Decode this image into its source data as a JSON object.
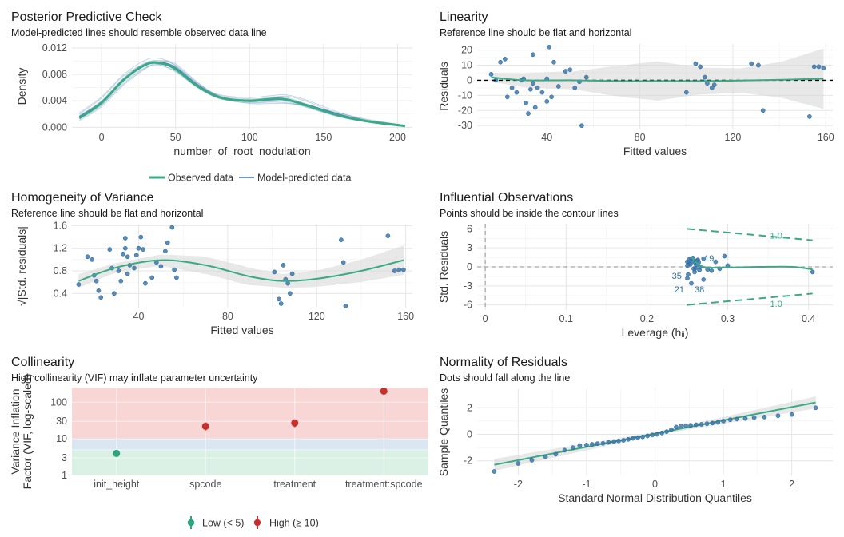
{
  "colors": {
    "observed": "#3aaa85",
    "predicted": "#3a78b0",
    "point": "#3a78b0",
    "ribbon": "#d9d9d9",
    "high_band": "#f7d2d2",
    "mod_band": "#d6e4f2",
    "low_band": "#d8efe3",
    "low": "#2ea57a",
    "high": "#c9302c"
  },
  "chart_data": [
    {
      "id": "ppc",
      "type": "line",
      "title": "Posterior Predictive Check",
      "subtitle": "Model-predicted lines should resemble observed data line",
      "xlabel": "number_of_root_nodulation",
      "ylabel": "Density",
      "xlim": [
        -20,
        210
      ],
      "ylim": [
        -0.0002,
        0.0126
      ],
      "xticks": [
        0,
        50,
        100,
        150,
        200
      ],
      "yticks": [
        0,
        0.004,
        0.008,
        0.012
      ],
      "ytick_labels": [
        "0.000",
        "0.004",
        "0.008",
        "0.012"
      ],
      "legend": [
        "Observed data",
        "Model-predicted data"
      ],
      "legend_position": "bottom",
      "observed": {
        "x": [
          -15,
          0,
          15,
          30,
          40,
          50,
          65,
          80,
          100,
          115,
          125,
          140,
          160,
          180,
          205
        ],
        "y": [
          0.0014,
          0.0037,
          0.0072,
          0.0095,
          0.0097,
          0.0088,
          0.0062,
          0.0045,
          0.004,
          0.0043,
          0.0042,
          0.0032,
          0.0018,
          0.0009,
          0.0002
        ]
      },
      "predicted_series": [
        {
          "x": [
            -15,
            0,
            15,
            30,
            40,
            50,
            65,
            80,
            100,
            115,
            125,
            140,
            160,
            180,
            205
          ],
          "y": [
            0.0018,
            0.004,
            0.0075,
            0.0098,
            0.0099,
            0.009,
            0.0063,
            0.0044,
            0.0039,
            0.004,
            0.004,
            0.0033,
            0.002,
            0.001,
            0.0002
          ]
        },
        {
          "x": [
            -15,
            0,
            15,
            30,
            40,
            50,
            65,
            80,
            100,
            115,
            125,
            140,
            160,
            180,
            205
          ],
          "y": [
            0.0012,
            0.0033,
            0.0068,
            0.0091,
            0.0095,
            0.0087,
            0.0061,
            0.0046,
            0.0042,
            0.0046,
            0.0045,
            0.0034,
            0.0019,
            0.0009,
            0.0002
          ]
        },
        {
          "x": [
            -15,
            0,
            15,
            30,
            40,
            50,
            65,
            80,
            100,
            115,
            125,
            140,
            160,
            180,
            205
          ],
          "y": [
            0.002,
            0.0044,
            0.0078,
            0.0096,
            0.0094,
            0.0084,
            0.006,
            0.0043,
            0.0037,
            0.0038,
            0.0037,
            0.0031,
            0.0021,
            0.0011,
            0.0003
          ]
        },
        {
          "x": [
            -15,
            0,
            15,
            30,
            40,
            50,
            65,
            80,
            100,
            115,
            125,
            140,
            160,
            180,
            205
          ],
          "y": [
            0.001,
            0.0031,
            0.0064,
            0.0089,
            0.01,
            0.0096,
            0.0068,
            0.0047,
            0.004,
            0.0044,
            0.0047,
            0.0038,
            0.002,
            0.0008,
            0.0001
          ]
        },
        {
          "x": [
            -15,
            0,
            15,
            30,
            40,
            50,
            65,
            80,
            100,
            115,
            125,
            140,
            160,
            180,
            205
          ],
          "y": [
            0.0016,
            0.0038,
            0.0071,
            0.0094,
            0.0098,
            0.0092,
            0.0066,
            0.0048,
            0.0043,
            0.0043,
            0.0041,
            0.003,
            0.0017,
            0.0009,
            0.0002
          ]
        },
        {
          "x": [
            -15,
            0,
            15,
            30,
            40,
            50,
            65,
            80,
            100,
            115,
            125,
            140,
            160,
            180,
            205
          ],
          "y": [
            0.0022,
            0.0046,
            0.008,
            0.0102,
            0.0104,
            0.0093,
            0.0065,
            0.0045,
            0.0036,
            0.0036,
            0.0036,
            0.0032,
            0.0022,
            0.0012,
            0.0003
          ]
        },
        {
          "x": [
            -15,
            0,
            15,
            30,
            40,
            50,
            65,
            80,
            100,
            115,
            125,
            140,
            160,
            180,
            205
          ],
          "y": [
            0.0013,
            0.0034,
            0.0066,
            0.009,
            0.0093,
            0.0085,
            0.0062,
            0.0049,
            0.0045,
            0.0048,
            0.0049,
            0.004,
            0.0023,
            0.001,
            0.0001
          ]
        },
        {
          "x": [
            -15,
            0,
            15,
            30,
            40,
            50,
            65,
            80,
            100,
            115,
            125,
            140,
            160,
            180,
            205
          ],
          "y": [
            0.0017,
            0.0039,
            0.0073,
            0.0097,
            0.0101,
            0.0094,
            0.0067,
            0.0046,
            0.0038,
            0.0039,
            0.0039,
            0.0029,
            0.0016,
            0.0008,
            0.0002
          ]
        }
      ]
    },
    {
      "id": "linearity",
      "type": "scatter",
      "title": "Linearity",
      "subtitle": "Reference line should be flat and horizontal",
      "xlabel": "Fitted values",
      "ylabel": "Residuals",
      "xlim": [
        10,
        163
      ],
      "ylim": [
        -32,
        24
      ],
      "xticks": [
        40,
        80,
        120,
        160
      ],
      "yticks": [
        -30,
        -20,
        -10,
        0,
        10,
        20
      ],
      "points": {
        "x": [
          16,
          18,
          20,
          22,
          23,
          25,
          27,
          29,
          30,
          31,
          32,
          33,
          34,
          34,
          35,
          36,
          38,
          40,
          40,
          41,
          42,
          43,
          45,
          48,
          50,
          52,
          54,
          55,
          57,
          100,
          104,
          106,
          108,
          109,
          111,
          112,
          128,
          131,
          133,
          153,
          155,
          157,
          159
        ],
        "y": [
          4,
          0,
          12,
          14,
          -11,
          -5,
          -8,
          0,
          1,
          -15,
          -22,
          -6,
          -2,
          17,
          -18,
          -5,
          -8,
          -14,
          1,
          22,
          -11,
          12,
          -4,
          6,
          7,
          -5,
          -1,
          -30,
          2,
          -8,
          11,
          9,
          2,
          -2,
          -5,
          -3,
          11,
          10,
          -20,
          -24,
          9,
          9,
          8
        ]
      },
      "smooth": {
        "x": [
          16,
          30,
          50,
          70,
          90,
          110,
          130,
          145,
          159
        ],
        "y": [
          2,
          0,
          0,
          -0.5,
          -0.5,
          -0.5,
          0,
          0.5,
          1
        ]
      },
      "ribbon_half_width": [
        3,
        5,
        6,
        10,
        13,
        9,
        8,
        12,
        20
      ],
      "reference": 0
    },
    {
      "id": "homogeneity",
      "type": "scatter",
      "title": "Homogeneity of Variance",
      "subtitle": "Reference line should be flat and horizontal",
      "xlabel": "Fitted values",
      "ylabel": "√|Std. residuals|",
      "xlim": [
        10,
        163
      ],
      "ylim": [
        0.15,
        1.62
      ],
      "xticks": [
        40,
        80,
        120,
        160
      ],
      "yticks": [
        0.4,
        0.8,
        1.2,
        1.6
      ],
      "points": {
        "x": [
          13,
          17,
          19,
          20,
          21,
          22,
          23,
          27,
          28,
          29,
          31,
          32,
          33,
          34,
          34,
          35,
          35,
          36,
          38,
          39,
          40,
          41,
          42,
          43,
          46,
          48,
          50,
          52,
          53,
          55,
          56,
          57,
          101,
          103,
          104,
          105,
          106,
          107,
          108,
          109,
          131,
          132,
          133,
          152,
          155,
          157,
          159
        ],
        "y": [
          0.56,
          1.05,
          1.0,
          0.72,
          0.62,
          0.45,
          0.33,
          1.18,
          0.85,
          0.4,
          0.8,
          0.62,
          1.1,
          1.38,
          1.2,
          0.75,
          1.05,
          0.9,
          0.85,
          1.08,
          1.2,
          1.4,
          1.18,
          0.58,
          0.68,
          0.95,
          0.88,
          1.15,
          1.3,
          1.57,
          0.82,
          0.68,
          0.78,
          0.3,
          0.22,
          0.9,
          0.65,
          0.58,
          0.4,
          0.75,
          1.35,
          0.95,
          0.18,
          1.42,
          0.8,
          0.82,
          0.82
        ]
      },
      "smooth": {
        "x": [
          13,
          30,
          50,
          70,
          90,
          105,
          120,
          140,
          159
        ],
        "y": [
          0.62,
          0.86,
          0.99,
          0.9,
          0.7,
          0.62,
          0.66,
          0.8,
          0.99
        ]
      },
      "ribbon_half_width": [
        0.12,
        0.08,
        0.1,
        0.15,
        0.16,
        0.12,
        0.15,
        0.2,
        0.26
      ]
    },
    {
      "id": "influential",
      "type": "scatter",
      "title": "Influential Observations",
      "subtitle": "Points should be inside the contour lines",
      "xlabel": "Leverage (hᵢᵢ)",
      "ylabel": "Std. Residuals",
      "xlim": [
        -0.01,
        0.43
      ],
      "ylim": [
        -6.8,
        6.8
      ],
      "xticks": [
        0.0,
        0.1,
        0.2,
        0.3,
        0.4
      ],
      "yticks": [
        -6,
        -3,
        0,
        3,
        6
      ],
      "points": {
        "x": [
          0.25,
          0.252,
          0.255,
          0.258,
          0.26,
          0.262,
          0.265,
          0.25,
          0.253,
          0.256,
          0.259,
          0.261,
          0.263,
          0.266,
          0.251,
          0.254,
          0.257,
          0.26,
          0.264,
          0.25,
          0.255,
          0.27,
          0.28,
          0.29,
          0.296,
          0.3,
          0.27,
          0.275,
          0.285,
          0.405
        ],
        "y": [
          0.8,
          0.5,
          1.2,
          -0.3,
          0.6,
          1.0,
          -0.5,
          0.2,
          1.3,
          0.9,
          -0.8,
          0.3,
          1.1,
          0.0,
          -1.2,
          0.4,
          1.4,
          -0.2,
          0.7,
          -1.8,
          -2.6,
          -2.0,
          -0.6,
          -0.3,
          1.7,
          0.2,
          1.3,
          -0.4,
          0.8,
          -0.8
        ]
      },
      "smooth": {
        "x": [
          0.255,
          0.27,
          0.3,
          0.34,
          0.38,
          0.405
        ],
        "y": [
          1.5,
          0.0,
          -0.1,
          0.0,
          0.0,
          -0.4
        ]
      },
      "contour_upper": {
        "x": [
          0.25,
          0.405
        ],
        "y": [
          6.0,
          4.2
        ]
      },
      "contour_lower": {
        "x": [
          0.25,
          0.405
        ],
        "y": [
          -6.0,
          -4.2
        ]
      },
      "contour_labels": [
        {
          "text": "1.0",
          "x": 0.36,
          "y": 5.0
        },
        {
          "text": "1.0",
          "x": 0.36,
          "y": -5.8
        }
      ],
      "point_labels": [
        {
          "text": "19",
          "x": 0.277,
          "y": 1.4
        },
        {
          "text": "35",
          "x": 0.237,
          "y": -1.4
        },
        {
          "text": "21",
          "x": 0.24,
          "y": -3.5
        },
        {
          "text": "38",
          "x": 0.265,
          "y": -3.5
        }
      ],
      "vline": 0,
      "hline": 0
    },
    {
      "id": "collinearity",
      "type": "scatter",
      "title": "Collinearity",
      "subtitle": "High collinearity (VIF) may inflate parameter uncertainty",
      "ylabel": "Variance Inflation\nFactor (VIF, log-scaled)",
      "categories": [
        "init_height",
        "spcode",
        "treatment",
        "treatment:spcode"
      ],
      "yscale": "log",
      "ylim": [
        1,
        250
      ],
      "yticks": [
        1,
        3,
        5,
        10,
        30,
        100
      ],
      "ytick_labels": [
        "1",
        "3",
        "",
        "10",
        "30",
        "100"
      ],
      "vif": [
        4,
        22,
        27,
        200
      ],
      "ci_low": [
        3.3,
        17,
        21,
        170
      ],
      "ci_high": [
        4.8,
        28,
        34,
        235
      ],
      "group": [
        "Low (< 5)",
        "High (≥ 10)",
        "High (≥ 10)",
        "High (≥ 10)"
      ],
      "bands": [
        {
          "from": 1,
          "to": 5,
          "level": "low"
        },
        {
          "from": 5,
          "to": 10,
          "level": "moderate"
        },
        {
          "from": 10,
          "to": 250,
          "level": "high"
        }
      ],
      "legend": [
        "Low (< 5)",
        "High (≥ 10)"
      ],
      "legend_position": "bottom"
    },
    {
      "id": "normality",
      "type": "scatter",
      "title": "Normality of Residuals",
      "subtitle": "Dots should fall along the line",
      "xlabel": "Standard Normal Distribution Quantiles",
      "ylabel": "Sample Quantiles",
      "xlim": [
        -2.6,
        2.6
      ],
      "ylim": [
        -3.1,
        3.4
      ],
      "xticks": [
        -2,
        -1,
        0,
        1,
        2
      ],
      "yticks": [
        -2,
        0,
        2
      ],
      "line": {
        "x": [
          -2.35,
          2.35
        ],
        "y": [
          -2.3,
          2.4
        ]
      },
      "ribbon_half_width": [
        0.45,
        0.12,
        0.45
      ],
      "points": {
        "x": [
          -2.35,
          -2.0,
          -1.8,
          -1.6,
          -1.45,
          -1.32,
          -1.2,
          -1.1,
          -1.0,
          -0.92,
          -0.84,
          -0.76,
          -0.68,
          -0.6,
          -0.53,
          -0.46,
          -0.39,
          -0.32,
          -0.25,
          -0.18,
          -0.11,
          -0.04,
          0.03,
          0.1,
          0.17,
          0.24,
          0.31,
          0.38,
          0.45,
          0.52,
          0.6,
          0.68,
          0.76,
          0.84,
          0.92,
          1.0,
          1.1,
          1.2,
          1.32,
          1.45,
          1.6,
          1.8,
          2.0,
          2.35
        ],
        "y": [
          -2.8,
          -2.2,
          -1.95,
          -1.7,
          -1.5,
          -1.2,
          -1.0,
          -0.85,
          -0.8,
          -0.75,
          -0.7,
          -0.68,
          -0.6,
          -0.55,
          -0.5,
          -0.45,
          -0.38,
          -0.3,
          -0.25,
          -0.2,
          -0.12,
          -0.05,
          0.0,
          0.1,
          0.2,
          0.35,
          0.55,
          0.62,
          0.65,
          0.68,
          0.72,
          0.75,
          0.8,
          0.85,
          0.9,
          1.0,
          1.1,
          1.15,
          1.2,
          1.25,
          1.3,
          1.4,
          1.5,
          2.0
        ]
      }
    }
  ]
}
